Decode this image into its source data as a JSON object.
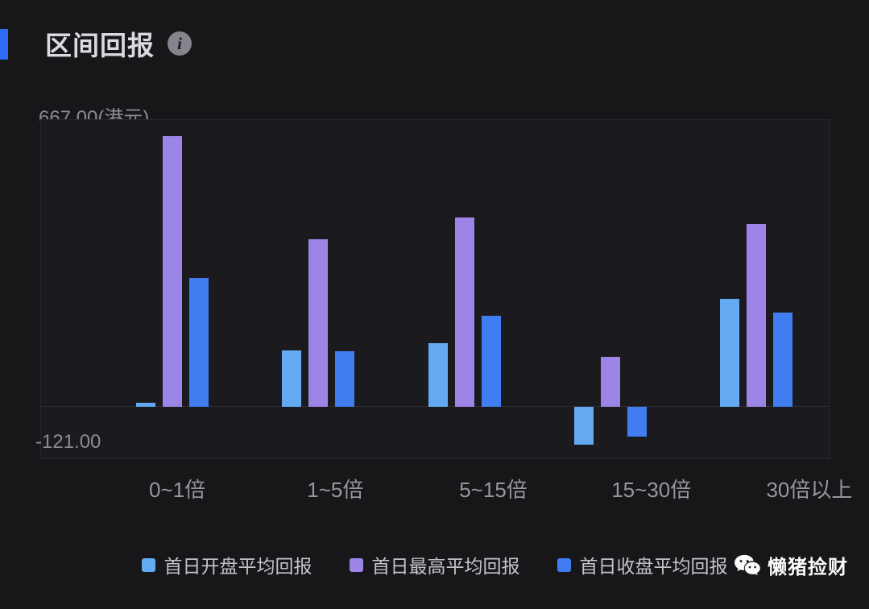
{
  "header": {
    "title": "区间回报",
    "info_icon_glyph": "i"
  },
  "chart_data": {
    "type": "bar",
    "title": "区间回报",
    "y_axis_top_label": "667.00(港元)",
    "y_axis_bottom_label": "-121.00",
    "y_unit": "港元",
    "ylim": [
      -121,
      667
    ],
    "grid": false,
    "legend_position": "bottom",
    "categories": [
      "0~1倍",
      "1~5倍",
      "5~15倍",
      "15~30倍",
      "30倍以上"
    ],
    "series": [
      {
        "name": "首日开盘平均回报",
        "color": "#64aaf2",
        "values": [
          8,
          130,
          148,
          -90,
          250
        ]
      },
      {
        "name": "首日最高平均回报",
        "color": "#9d85e8",
        "values": [
          630,
          390,
          440,
          115,
          425
        ]
      },
      {
        "name": "首日收盘平均回报",
        "color": "#3f7df0",
        "values": [
          300,
          128,
          212,
          -70,
          218
        ]
      }
    ]
  },
  "watermark": {
    "label": "懒猪捡财",
    "icon": "wechat-icon"
  }
}
